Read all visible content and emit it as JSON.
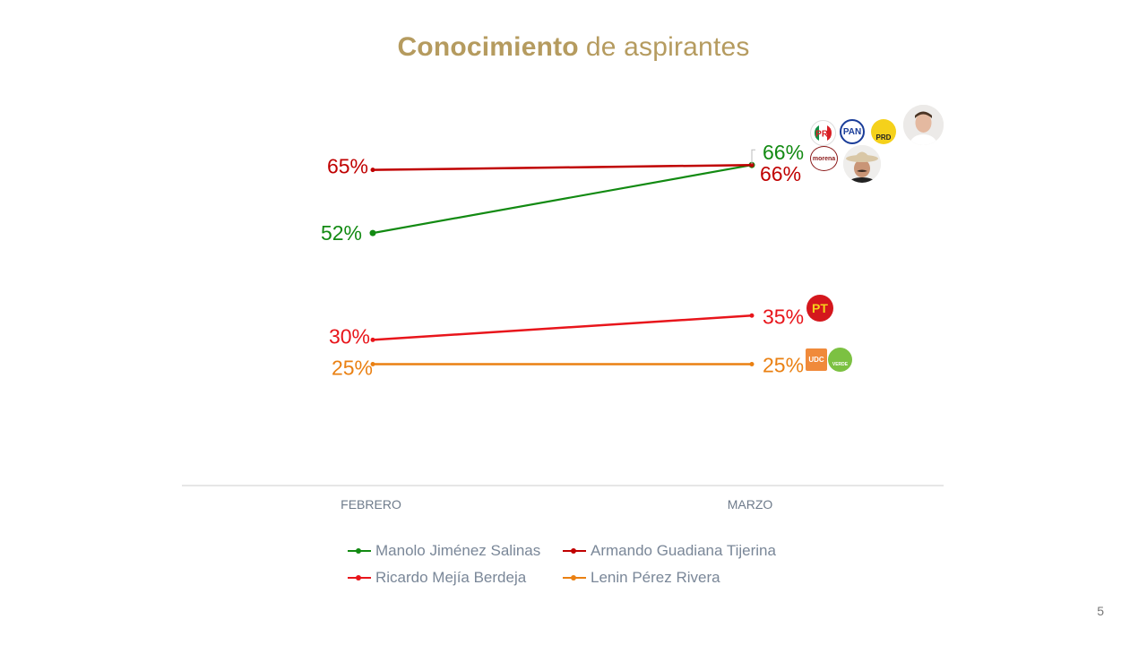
{
  "page": {
    "title_bold": "Conocimiento",
    "title_rest": "de aspirantes",
    "page_number": "5"
  },
  "chart_data": {
    "type": "line",
    "title": "Conocimiento de aspirantes",
    "xlabel": "",
    "ylabel": "",
    "categories": [
      "FEBRERO",
      "MARZO"
    ],
    "ylim": [
      0,
      95
    ],
    "grid": false,
    "legend_position": "bottom",
    "series": [
      {
        "name": "Manolo Jiménez Salinas",
        "values": [
          52,
          66
        ],
        "labels": [
          "52%",
          "66%"
        ],
        "color": "#128a12",
        "parties": [
          "PRI",
          "PAN",
          "PRD"
        ]
      },
      {
        "name": "Armando Guadiana Tijerina",
        "values": [
          65,
          66
        ],
        "labels": [
          "65%",
          "66%"
        ],
        "color": "#c00000",
        "parties": [
          "morena"
        ]
      },
      {
        "name": "Ricardo Mejía Berdeja",
        "values": [
          30,
          35
        ],
        "labels": [
          "30%",
          "35%"
        ],
        "color": "#e8151b",
        "parties": [
          "PT"
        ]
      },
      {
        "name": "Lenin Pérez Rivera",
        "values": [
          25,
          25
        ],
        "labels": [
          "25%",
          "25%"
        ],
        "color": "#ea8012",
        "parties": [
          "UDC",
          "VERDE"
        ]
      }
    ]
  },
  "party_logos": {
    "pri": "PRI",
    "pan": "PAN",
    "prd": "PRD",
    "morena": "morena",
    "pt": "PT",
    "udc": "UDC",
    "verde": "VERDE"
  }
}
